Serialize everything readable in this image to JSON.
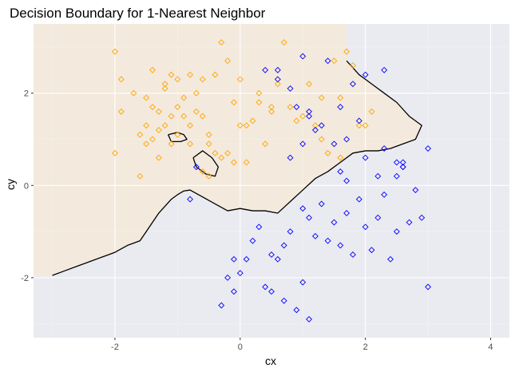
{
  "chart_data": {
    "type": "scatter",
    "title": "Decision Boundary for 1-Nearest Neighbor",
    "xlabel": "cx",
    "ylabel": "cy",
    "xlim": [
      -3.3,
      4.3
    ],
    "ylim": [
      -3.3,
      3.5
    ],
    "x_ticks": [
      -2,
      0,
      2,
      4
    ],
    "y_ticks": [
      -2,
      0,
      2
    ],
    "x_tick_labels": [
      "-2",
      "0",
      "2",
      "4"
    ],
    "y_tick_labels": [
      "-2",
      "0",
      "2"
    ],
    "grid": true,
    "legend": "none",
    "colors": {
      "panel_bg": "#ebebeb",
      "grid_major": "#ffffff",
      "class_orange": "#ffa500",
      "class_blue": "#0000ff",
      "region_orange": "#f5e9d8",
      "region_blue": "#e9e9f6",
      "boundary": "#000000"
    },
    "series": [
      {
        "color": "#ffa500",
        "marker": "diamond",
        "x": [
          -2.0,
          -2.0,
          -1.9,
          -1.9,
          -1.7,
          -1.6,
          -1.6,
          -1.5,
          -1.5,
          -1.4,
          -1.4,
          -1.3,
          -1.3,
          -1.3,
          -1.2,
          -1.2,
          -1.1,
          -1.1,
          -1.0,
          -1.0,
          -1.0,
          -0.9,
          -0.9,
          -0.8,
          -0.8,
          -0.7,
          -0.7,
          -0.6,
          -0.6,
          -0.5,
          -0.5,
          -0.4,
          -0.4,
          -0.3,
          -0.3,
          -0.2,
          -0.2,
          -0.1,
          -0.1,
          0.0,
          0.1,
          0.1,
          0.2,
          0.3,
          0.4,
          0.5,
          0.6,
          0.7,
          0.8,
          0.9,
          1.0,
          1.1,
          1.2,
          1.3,
          1.4,
          1.5,
          1.6,
          1.7,
          1.8,
          1.9,
          2.0,
          2.1,
          -1.2,
          -1.1,
          -0.8,
          -0.6,
          -0.5,
          0.0,
          0.3,
          0.5,
          1.3,
          1.6,
          -1.4,
          -1.5
        ],
        "y": [
          2.9,
          0.7,
          1.6,
          2.3,
          2.0,
          1.1,
          0.2,
          1.3,
          0.9,
          1.7,
          1.0,
          1.6,
          1.2,
          0.6,
          2.1,
          1.3,
          1.5,
          0.9,
          2.3,
          1.7,
          1.1,
          1.9,
          1.5,
          2.4,
          1.3,
          2.0,
          1.6,
          1.5,
          0.3,
          1.1,
          0.2,
          2.4,
          0.7,
          0.6,
          3.1,
          0.7,
          2.7,
          0.5,
          1.8,
          1.3,
          0.5,
          1.3,
          1.4,
          2.0,
          0.9,
          1.6,
          2.2,
          3.1,
          1.7,
          1.4,
          1.5,
          2.2,
          1.3,
          1.9,
          0.7,
          2.7,
          1.9,
          2.9,
          2.6,
          1.3,
          1.3,
          1.6,
          2.2,
          2.4,
          0.9,
          2.3,
          0.9,
          2.3,
          1.8,
          1.7,
          1.0,
          0.6,
          2.5,
          1.9
        ]
      },
      {
        "color": "#0000ff",
        "marker": "diamond",
        "x": [
          -0.7,
          -0.8,
          -0.3,
          -0.2,
          -0.1,
          -0.1,
          0.0,
          0.1,
          0.2,
          0.3,
          0.4,
          0.5,
          0.5,
          0.6,
          0.7,
          0.7,
          0.8,
          0.9,
          1.0,
          1.0,
          1.1,
          1.1,
          1.2,
          1.3,
          1.4,
          1.5,
          1.6,
          1.7,
          1.8,
          1.9,
          2.0,
          2.1,
          2.2,
          2.3,
          2.4,
          2.5,
          2.6,
          2.7,
          2.8,
          2.9,
          3.0,
          3.0,
          1.5,
          1.7,
          2.2,
          2.6,
          2.5,
          1.1,
          1.3,
          0.6,
          0.8,
          1.0,
          1.2,
          1.4,
          1.6,
          1.8,
          2.0,
          2.3,
          1.9,
          1.6,
          1.0,
          0.4,
          0.6,
          0.9,
          1.1,
          0.8,
          1.7,
          2.0,
          2.3,
          2.5,
          2.6
        ],
        "y": [
          0.4,
          -0.3,
          -2.6,
          -2.0,
          -1.6,
          -2.3,
          -1.9,
          -1.6,
          -1.2,
          -0.9,
          -2.2,
          -1.5,
          -2.3,
          -1.6,
          -2.5,
          -1.3,
          -1.0,
          -2.7,
          -2.1,
          -0.5,
          -2.9,
          -0.7,
          -1.1,
          -0.4,
          -1.2,
          -0.8,
          -1.3,
          -0.6,
          -1.5,
          -0.3,
          -0.9,
          -1.4,
          -0.7,
          -0.2,
          -1.6,
          -1.0,
          0.5,
          -0.8,
          -0.1,
          -0.7,
          -2.2,
          0.8,
          0.9,
          1.0,
          0.2,
          0.4,
          0.2,
          1.5,
          1.3,
          2.5,
          2.1,
          2.8,
          1.2,
          2.7,
          1.7,
          2.2,
          2.4,
          2.5,
          1.4,
          0.3,
          0.9,
          2.5,
          2.3,
          1.7,
          1.6,
          0.6,
          0.1,
          0.6,
          0.8,
          0.5,
          0.4
        ]
      }
    ],
    "boundary_lines": [
      {
        "x": [
          -3.0,
          -2.8,
          -2.6,
          -2.4,
          -2.2,
          -2.0,
          -1.8,
          -1.6,
          -1.5,
          -1.4,
          -1.3,
          -1.2,
          -1.1,
          -1.0,
          -0.9,
          -0.8,
          -0.6,
          -0.4,
          -0.2,
          0.0,
          0.2,
          0.4,
          0.6,
          0.8,
          1.0,
          1.2,
          1.4,
          1.6,
          1.8,
          2.0,
          2.2,
          2.4,
          2.6,
          2.8,
          2.9,
          2.7,
          2.5,
          2.3,
          2.1,
          1.9,
          1.7
        ],
        "y": [
          -1.95,
          -1.85,
          -1.75,
          -1.65,
          -1.55,
          -1.45,
          -1.3,
          -1.2,
          -1.0,
          -0.8,
          -0.6,
          -0.45,
          -0.3,
          -0.2,
          -0.12,
          -0.1,
          -0.25,
          -0.4,
          -0.55,
          -0.5,
          -0.55,
          -0.55,
          -0.6,
          -0.35,
          -0.1,
          0.15,
          0.3,
          0.5,
          0.7,
          0.75,
          0.75,
          0.8,
          0.9,
          1.0,
          1.3,
          1.5,
          1.8,
          2.0,
          2.2,
          2.4,
          2.7
        ]
      },
      {
        "x": [
          -1.15,
          -1.0,
          -0.9,
          -0.85,
          -0.95,
          -1.1,
          -1.15
        ],
        "y": [
          1.1,
          1.15,
          1.1,
          1.0,
          0.95,
          0.95,
          1.1
        ]
      },
      {
        "x": [
          -0.75,
          -0.6,
          -0.45,
          -0.35,
          -0.4,
          -0.55,
          -0.7,
          -0.75
        ],
        "y": [
          0.6,
          0.75,
          0.6,
          0.4,
          0.2,
          0.25,
          0.4,
          0.6
        ]
      }
    ]
  }
}
